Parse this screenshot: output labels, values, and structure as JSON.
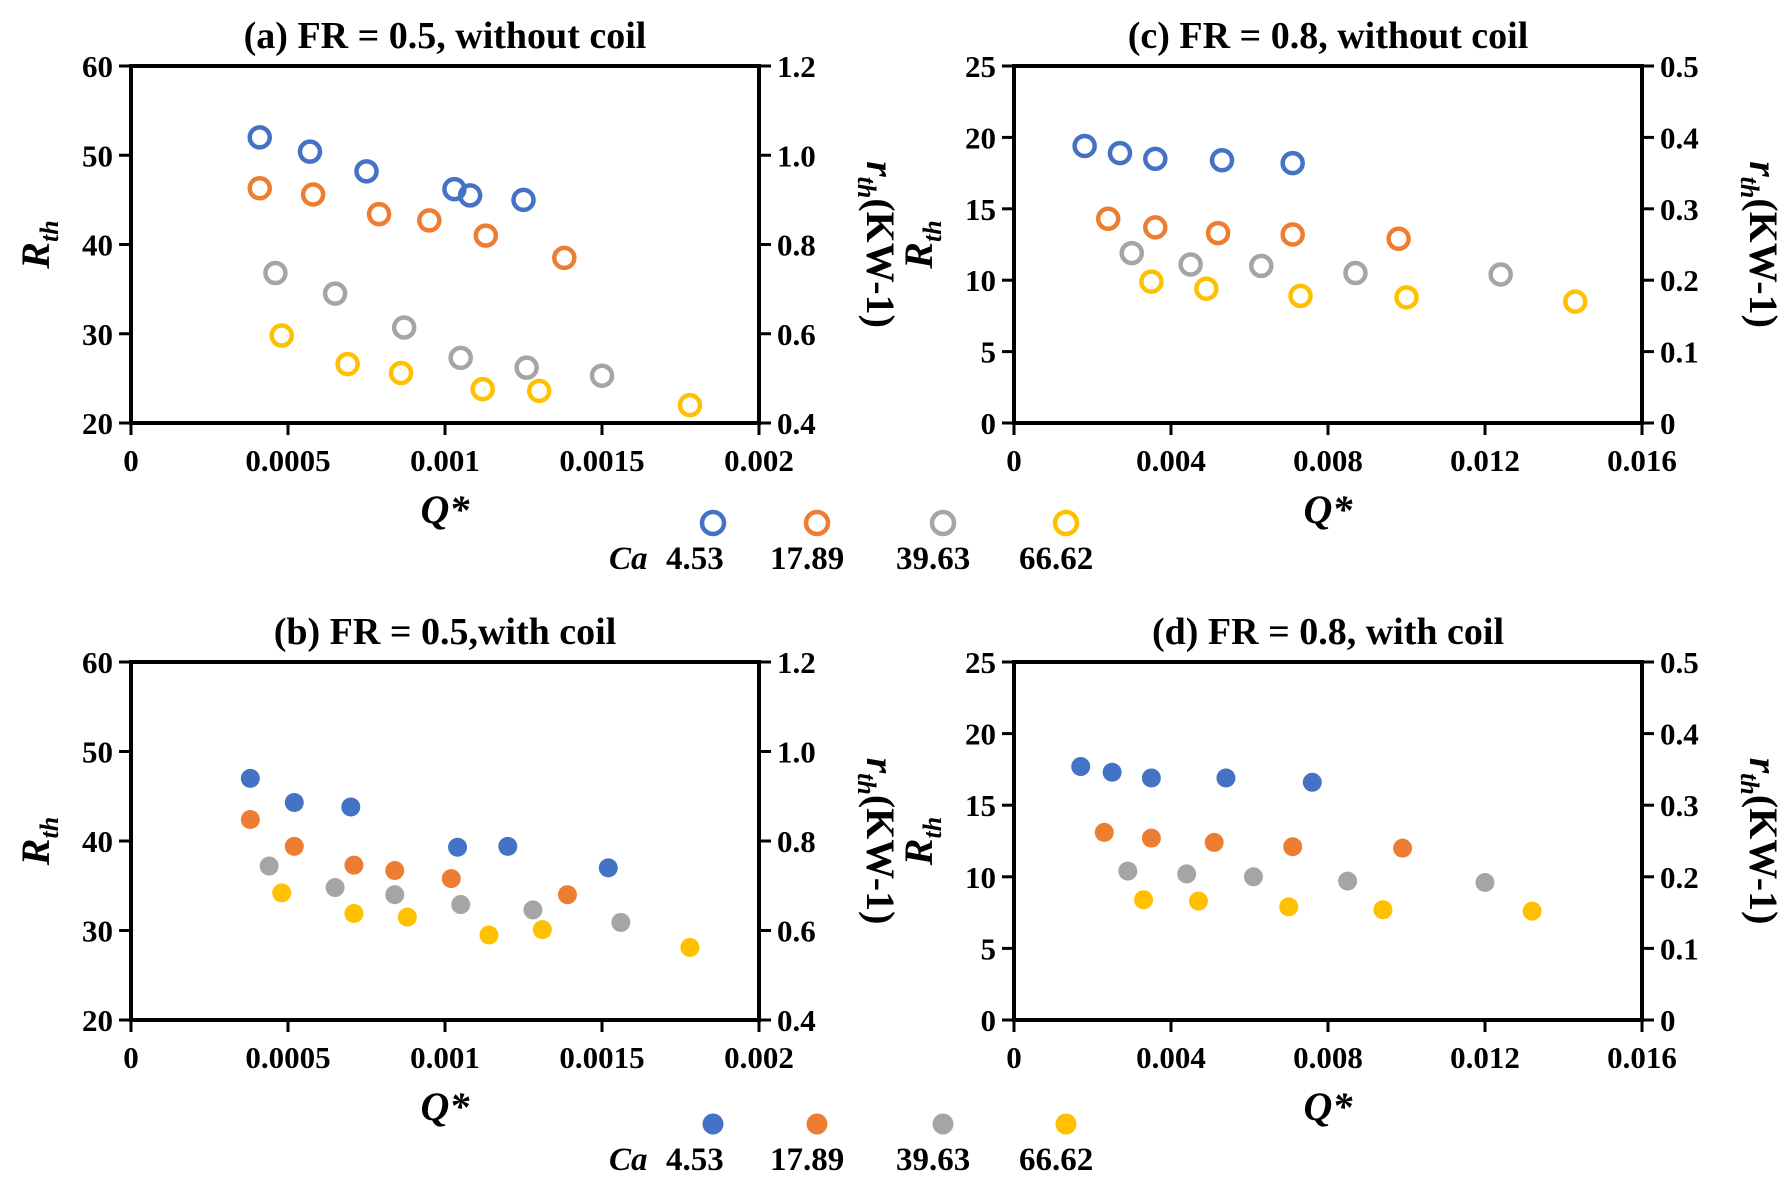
{
  "colors": {
    "series": [
      "#4472C4",
      "#ED7D31",
      "#A5A5A5",
      "#FFC000"
    ],
    "axis": "#000000"
  },
  "legends": [
    {
      "label": "Ca",
      "values": [
        "4.53",
        "17.89",
        "39.63",
        "66.62"
      ],
      "marker": "hollow"
    },
    {
      "label": "Ca",
      "values": [
        "4.53",
        "17.89",
        "39.63",
        "66.62"
      ],
      "marker": "filled"
    }
  ],
  "chart_data": [
    {
      "id": "a",
      "type": "scatter",
      "title": "(a) FR = 0.5, without coil",
      "xlabel": "Q*",
      "ylabel": "R",
      "ylabel_sub": "th",
      "y2label": "r",
      "y2label_sub": "th",
      "y2label_unit": "(KW-1)",
      "xlim": [
        0,
        0.002
      ],
      "ylim": [
        20,
        60
      ],
      "y2lim": [
        0.4,
        1.2
      ],
      "xticks": [
        "0",
        "0.0005",
        "0.001",
        "0.0015",
        "0.002"
      ],
      "xtick_values": [
        0,
        0.0005,
        0.001,
        0.0015,
        0.002
      ],
      "yticks": [
        "20",
        "30",
        "40",
        "50",
        "60"
      ],
      "ytick_values": [
        20,
        30,
        40,
        50,
        60
      ],
      "y2ticks": [
        "0.4",
        "0.6",
        "0.8",
        "1.0",
        "1.2"
      ],
      "y2tick_values": [
        0.4,
        0.6,
        0.8,
        1.0,
        1.2
      ],
      "marker": "hollow",
      "series": [
        {
          "name": "4.53",
          "x": [
            0.00041,
            0.00057,
            0.00075,
            0.00103,
            0.00108,
            0.00125
          ],
          "y": [
            52.0,
            50.4,
            48.2,
            46.2,
            45.5,
            45.0
          ]
        },
        {
          "name": "17.89",
          "x": [
            0.00041,
            0.00058,
            0.00079,
            0.00095,
            0.00113,
            0.00138
          ],
          "y": [
            46.3,
            45.6,
            43.4,
            42.7,
            41.0,
            38.5
          ]
        },
        {
          "name": "39.63",
          "x": [
            0.00046,
            0.00065,
            0.00087,
            0.00105,
            0.00126,
            0.0015
          ],
          "y": [
            36.8,
            34.5,
            30.7,
            27.3,
            26.2,
            25.3
          ]
        },
        {
          "name": "66.62",
          "x": [
            0.00048,
            0.00069,
            0.00086,
            0.00112,
            0.0013,
            0.00178
          ],
          "y": [
            29.8,
            26.6,
            25.6,
            23.8,
            23.6,
            22.0
          ]
        }
      ]
    },
    {
      "id": "c",
      "type": "scatter",
      "title": "(c) FR = 0.8, without coil",
      "xlabel": "Q*",
      "ylabel": "R",
      "ylabel_sub": "th",
      "y2label": "r",
      "y2label_sub": "th",
      "y2label_unit": "(KW-1)",
      "xlim": [
        0,
        0.016
      ],
      "ylim": [
        0,
        25
      ],
      "y2lim": [
        0,
        0.5
      ],
      "xticks": [
        "0",
        "0.004",
        "0.008",
        "0.012",
        "0.016"
      ],
      "xtick_values": [
        0,
        0.004,
        0.008,
        0.012,
        0.016
      ],
      "yticks": [
        "0",
        "5",
        "10",
        "15",
        "20",
        "25"
      ],
      "ytick_values": [
        0,
        5,
        10,
        15,
        20,
        25
      ],
      "y2ticks": [
        "0",
        "0.1",
        "0.2",
        "0.3",
        "0.4",
        "0.5"
      ],
      "y2tick_values": [
        0,
        0.1,
        0.2,
        0.3,
        0.4,
        0.5
      ],
      "marker": "hollow",
      "series": [
        {
          "name": "4.53",
          "x": [
            0.0018,
            0.0027,
            0.0036,
            0.0053,
            0.0071
          ],
          "y": [
            19.4,
            18.9,
            18.5,
            18.4,
            18.2
          ]
        },
        {
          "name": "17.89",
          "x": [
            0.0024,
            0.0036,
            0.0052,
            0.0071,
            0.0098
          ],
          "y": [
            14.3,
            13.7,
            13.3,
            13.2,
            12.9
          ]
        },
        {
          "name": "39.63",
          "x": [
            0.003,
            0.0045,
            0.0063,
            0.0087,
            0.0124
          ],
          "y": [
            11.9,
            11.1,
            11.0,
            10.5,
            10.4
          ]
        },
        {
          "name": "66.62",
          "x": [
            0.0035,
            0.0049,
            0.0073,
            0.01,
            0.0143
          ],
          "y": [
            9.9,
            9.4,
            8.9,
            8.8,
            8.5
          ]
        }
      ]
    },
    {
      "id": "b",
      "type": "scatter",
      "title": "(b) FR = 0.5,with coil",
      "xlabel": "Q*",
      "ylabel": "R",
      "ylabel_sub": "th",
      "y2label": "r",
      "y2label_sub": "th",
      "y2label_unit": "(KW-1)",
      "xlim": [
        0,
        0.002
      ],
      "ylim": [
        20,
        60
      ],
      "y2lim": [
        0.4,
        1.2
      ],
      "xticks": [
        "0",
        "0.0005",
        "0.001",
        "0.0015",
        "0.002"
      ],
      "xtick_values": [
        0,
        0.0005,
        0.001,
        0.0015,
        0.002
      ],
      "yticks": [
        "20",
        "30",
        "40",
        "50",
        "60"
      ],
      "ytick_values": [
        20,
        30,
        40,
        50,
        60
      ],
      "y2ticks": [
        "0.4",
        "0.6",
        "0.8",
        "1.0",
        "1.2"
      ],
      "y2tick_values": [
        0.4,
        0.6,
        0.8,
        1.0,
        1.2
      ],
      "marker": "filled",
      "series": [
        {
          "name": "4.53",
          "x": [
            0.00038,
            0.00052,
            0.0007,
            0.00104,
            0.0012,
            0.00152
          ],
          "y": [
            47.0,
            44.3,
            43.8,
            39.3,
            39.4,
            37.0
          ]
        },
        {
          "name": "17.89",
          "x": [
            0.00038,
            0.00052,
            0.00071,
            0.00084,
            0.00102,
            0.00139
          ],
          "y": [
            42.4,
            39.4,
            37.3,
            36.7,
            35.8,
            34.0
          ]
        },
        {
          "name": "39.63",
          "x": [
            0.00044,
            0.00065,
            0.00084,
            0.00105,
            0.00128,
            0.00156
          ],
          "y": [
            37.2,
            34.8,
            34.0,
            32.9,
            32.3,
            30.9
          ]
        },
        {
          "name": "66.62",
          "x": [
            0.00048,
            0.00071,
            0.00088,
            0.00114,
            0.00131,
            0.00178
          ],
          "y": [
            34.2,
            31.9,
            31.5,
            29.5,
            30.1,
            28.1
          ]
        }
      ]
    },
    {
      "id": "d",
      "type": "scatter",
      "title": "(d) FR = 0.8, with coil",
      "xlabel": "Q*",
      "ylabel": "R",
      "ylabel_sub": "th",
      "y2label": "r",
      "y2label_sub": "th",
      "y2label_unit": "(KW-1)",
      "xlim": [
        0,
        0.016
      ],
      "ylim": [
        0,
        25
      ],
      "y2lim": [
        0,
        0.5
      ],
      "xticks": [
        "0",
        "0.004",
        "0.008",
        "0.012",
        "0.016"
      ],
      "xtick_values": [
        0,
        0.004,
        0.008,
        0.012,
        0.016
      ],
      "yticks": [
        "0",
        "5",
        "10",
        "15",
        "20",
        "25"
      ],
      "ytick_values": [
        0,
        5,
        10,
        15,
        20,
        25
      ],
      "y2ticks": [
        "0",
        "0.1",
        "0.2",
        "0.3",
        "0.4",
        "0.5"
      ],
      "y2tick_values": [
        0,
        0.1,
        0.2,
        0.3,
        0.4,
        0.5
      ],
      "marker": "filled",
      "series": [
        {
          "name": "4.53",
          "x": [
            0.0017,
            0.0025,
            0.0035,
            0.0054,
            0.0076
          ],
          "y": [
            17.7,
            17.3,
            16.9,
            16.9,
            16.6
          ]
        },
        {
          "name": "17.89",
          "x": [
            0.0023,
            0.0035,
            0.0051,
            0.0071,
            0.0099
          ],
          "y": [
            13.1,
            12.7,
            12.4,
            12.1,
            12.0
          ]
        },
        {
          "name": "39.63",
          "x": [
            0.0029,
            0.0044,
            0.0061,
            0.0085,
            0.012
          ],
          "y": [
            10.4,
            10.2,
            10.0,
            9.7,
            9.6
          ]
        },
        {
          "name": "66.62",
          "x": [
            0.0033,
            0.0047,
            0.007,
            0.0094,
            0.0132
          ],
          "y": [
            8.4,
            8.3,
            7.9,
            7.7,
            7.6
          ]
        }
      ]
    }
  ]
}
